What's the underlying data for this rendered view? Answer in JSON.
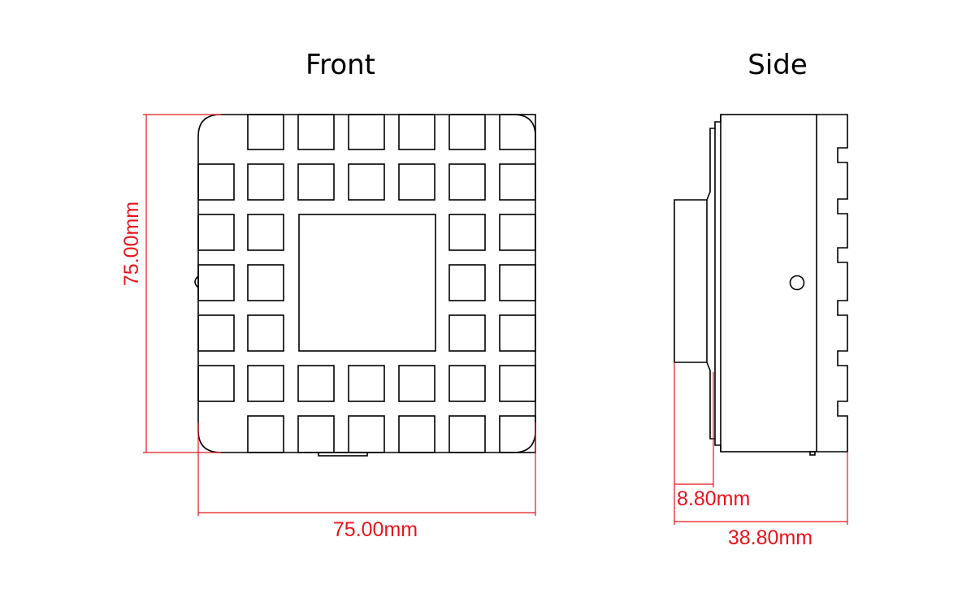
{
  "views": {
    "front_title": "Front",
    "side_title": "Side"
  },
  "dimensions": {
    "front_height": "75.00mm",
    "front_width": "75.00mm",
    "side_lens": "8.80mm",
    "side_depth": "38.80mm"
  },
  "colors": {
    "outline": "#000000",
    "dimension": "#e8141b",
    "background": "#ffffff"
  }
}
